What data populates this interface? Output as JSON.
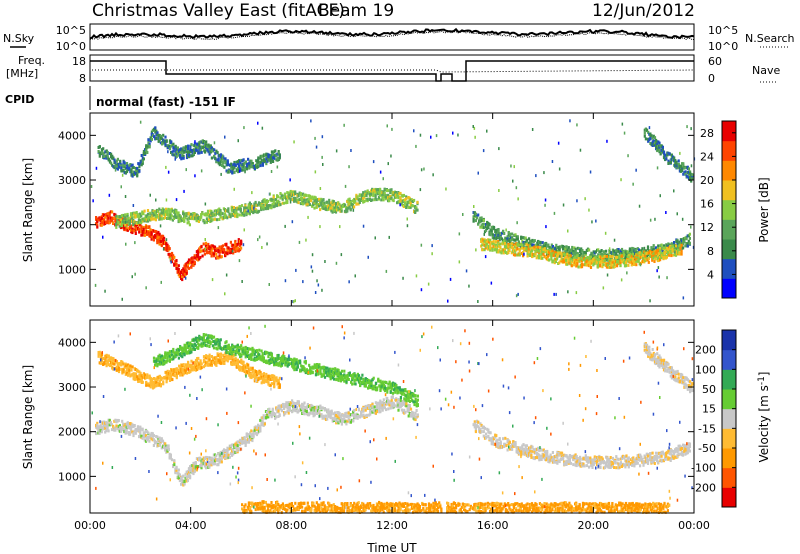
{
  "header": {
    "title": "Christmas Valley East (fitACF)",
    "beam": "Beam 19",
    "date": "12/Jun/2012"
  },
  "strip_labels": {
    "nsky": "N.Sky",
    "nsearch": "N.Search",
    "freq_line1": "Freq.",
    "freq_line2": "[MHz]",
    "nave": "Nave",
    "cpid": "CPID",
    "cpid_text": "normal (fast) -151 IF"
  },
  "strip_ticks": {
    "noise_left": [
      "10^5",
      "10^0"
    ],
    "noise_right": [
      "10^5",
      "10^0"
    ],
    "freq_left": [
      "18",
      "8"
    ],
    "nave_right": [
      "60",
      "0"
    ]
  },
  "colors": {
    "power": [
      "#0000ff",
      "#1f4fbf",
      "#3a8a4a",
      "#5aa55a",
      "#88cc44",
      "#f0c020",
      "#ff8800",
      "#ff4400",
      "#e80000"
    ],
    "velocity": [
      "#e80000",
      "#ff5500",
      "#ff9900",
      "#ffbb33",
      "#c8c8c8",
      "#66cc33",
      "#33aa55",
      "#3355cc",
      "#1a33aa"
    ]
  },
  "chart_data": [
    {
      "type": "heatmap",
      "panel": "Power",
      "xlabel": "",
      "ylabel": "Slant Range [km]",
      "x_ticks": [
        "00:00",
        "04:00",
        "08:00",
        "12:00",
        "16:00",
        "20:00",
        "00:00"
      ],
      "xlim_hours": [
        0,
        24
      ],
      "y_ticks": [
        1000,
        2000,
        3000,
        4000
      ],
      "ylim": [
        180,
        4500
      ],
      "colorbar_label": "Power [dB]",
      "colorbar_ticks": [
        4,
        8,
        12,
        16,
        20,
        24,
        28
      ],
      "colorbar_range": [
        0,
        30
      ],
      "features": [
        {
          "x": [
            0.2,
            0.8,
            1.5,
            2.2,
            2.8,
            3.2,
            3.6,
            4.0,
            4.5,
            5.0,
            5.5,
            6.0
          ],
          "y": [
            2100,
            2200,
            2000,
            1900,
            1700,
            1300,
            900,
            1200,
            1500,
            1400,
            1500,
            1600
          ],
          "level": 26
        },
        {
          "x": [
            1.0,
            2.0,
            3.0,
            4.0,
            5.0,
            6.0,
            7.0,
            8.0,
            9.0,
            10.0,
            11.0,
            12.0,
            13.0
          ],
          "y": [
            2100,
            2200,
            2300,
            2150,
            2250,
            2350,
            2500,
            2700,
            2500,
            2400,
            2700,
            2700,
            2400
          ],
          "level": 14
        },
        {
          "x": [
            0.3,
            1.0,
            1.8,
            2.5,
            3.5,
            4.5,
            5.5,
            6.5,
            7.5
          ],
          "y": [
            3700,
            3400,
            3200,
            4100,
            3600,
            3800,
            3300,
            3400,
            3600
          ],
          "level": 8
        },
        {
          "x": [
            15.2,
            16.0,
            17.0,
            18.0,
            19.0,
            20.0,
            21.0,
            22.0,
            23.0,
            23.8
          ],
          "y": [
            2200,
            1850,
            1650,
            1500,
            1400,
            1350,
            1350,
            1400,
            1500,
            1700
          ],
          "level": 10
        },
        {
          "x": [
            15.5,
            16.5,
            17.5,
            18.5,
            19.5,
            20.5,
            21.5,
            22.5,
            23.5
          ],
          "y": [
            1600,
            1500,
            1450,
            1300,
            1200,
            1200,
            1250,
            1350,
            1500
          ],
          "level": 18
        },
        {
          "x": [
            22.0,
            22.5,
            23.0,
            23.5,
            23.9
          ],
          "y": [
            4100,
            3800,
            3500,
            3300,
            3100
          ],
          "level": 8
        }
      ]
    },
    {
      "type": "heatmap",
      "panel": "Velocity",
      "xlabel": "Time UT",
      "ylabel": "Slant Range [km]",
      "x_ticks": [
        "00:00",
        "04:00",
        "08:00",
        "12:00",
        "16:00",
        "20:00",
        "00:00"
      ],
      "xlim_hours": [
        0,
        24
      ],
      "y_ticks": [
        1000,
        2000,
        3000,
        4000
      ],
      "ylim": [
        180,
        4500
      ],
      "colorbar_label": "Velocity [m s^-1]",
      "colorbar_ticks": [
        200,
        100,
        50,
        15,
        -15,
        -50,
        -100,
        -200
      ],
      "features": [
        {
          "x": [
            0.2,
            1.0,
            2.0,
            3.0,
            3.6,
            4.2,
            5.0,
            5.8,
            6.5,
            7.0,
            8.0,
            9.0,
            10.0,
            11.0,
            12.0,
            13.0
          ],
          "y": [
            2100,
            2200,
            2000,
            1700,
            900,
            1300,
            1400,
            1700,
            2000,
            2400,
            2600,
            2500,
            2300,
            2500,
            2700,
            2400
          ],
          "velocity": 0
        },
        {
          "x": [
            0.3,
            1.5,
            2.5,
            3.5,
            4.5,
            5.5,
            6.5,
            7.5
          ],
          "y": [
            3700,
            3400,
            3100,
            3400,
            3600,
            3700,
            3300,
            3100
          ],
          "velocity": -40
        },
        {
          "x": [
            2.5,
            3.5,
            4.5,
            5.5,
            12.0,
            13.0
          ],
          "y": [
            3600,
            3800,
            4100,
            3900,
            3000,
            2700
          ],
          "velocity": 40
        },
        {
          "x": [
            15.2,
            16.0,
            17.0,
            18.0,
            19.0,
            20.0,
            21.0,
            22.0,
            23.0,
            23.8
          ],
          "y": [
            2200,
            1850,
            1650,
            1500,
            1400,
            1350,
            1350,
            1400,
            1500,
            1700
          ],
          "velocity": -5
        },
        {
          "x": [
            22.0,
            23.0,
            23.9
          ],
          "y": [
            3900,
            3400,
            3000
          ],
          "velocity": -5
        },
        {
          "x": [
            6.0,
            7.0,
            8.0,
            9.0,
            10.0,
            11.0,
            12.0,
            13.0,
            14.0,
            15.0,
            16.0,
            17.0,
            18.0,
            19.0,
            20.0,
            21.0,
            22.0,
            23.0
          ],
          "y": [
            300,
            350,
            300,
            320,
            300,
            330,
            310,
            300,
            320,
            300,
            310,
            300,
            300,
            320,
            300,
            310,
            300,
            320
          ],
          "velocity": -60
        }
      ]
    }
  ]
}
